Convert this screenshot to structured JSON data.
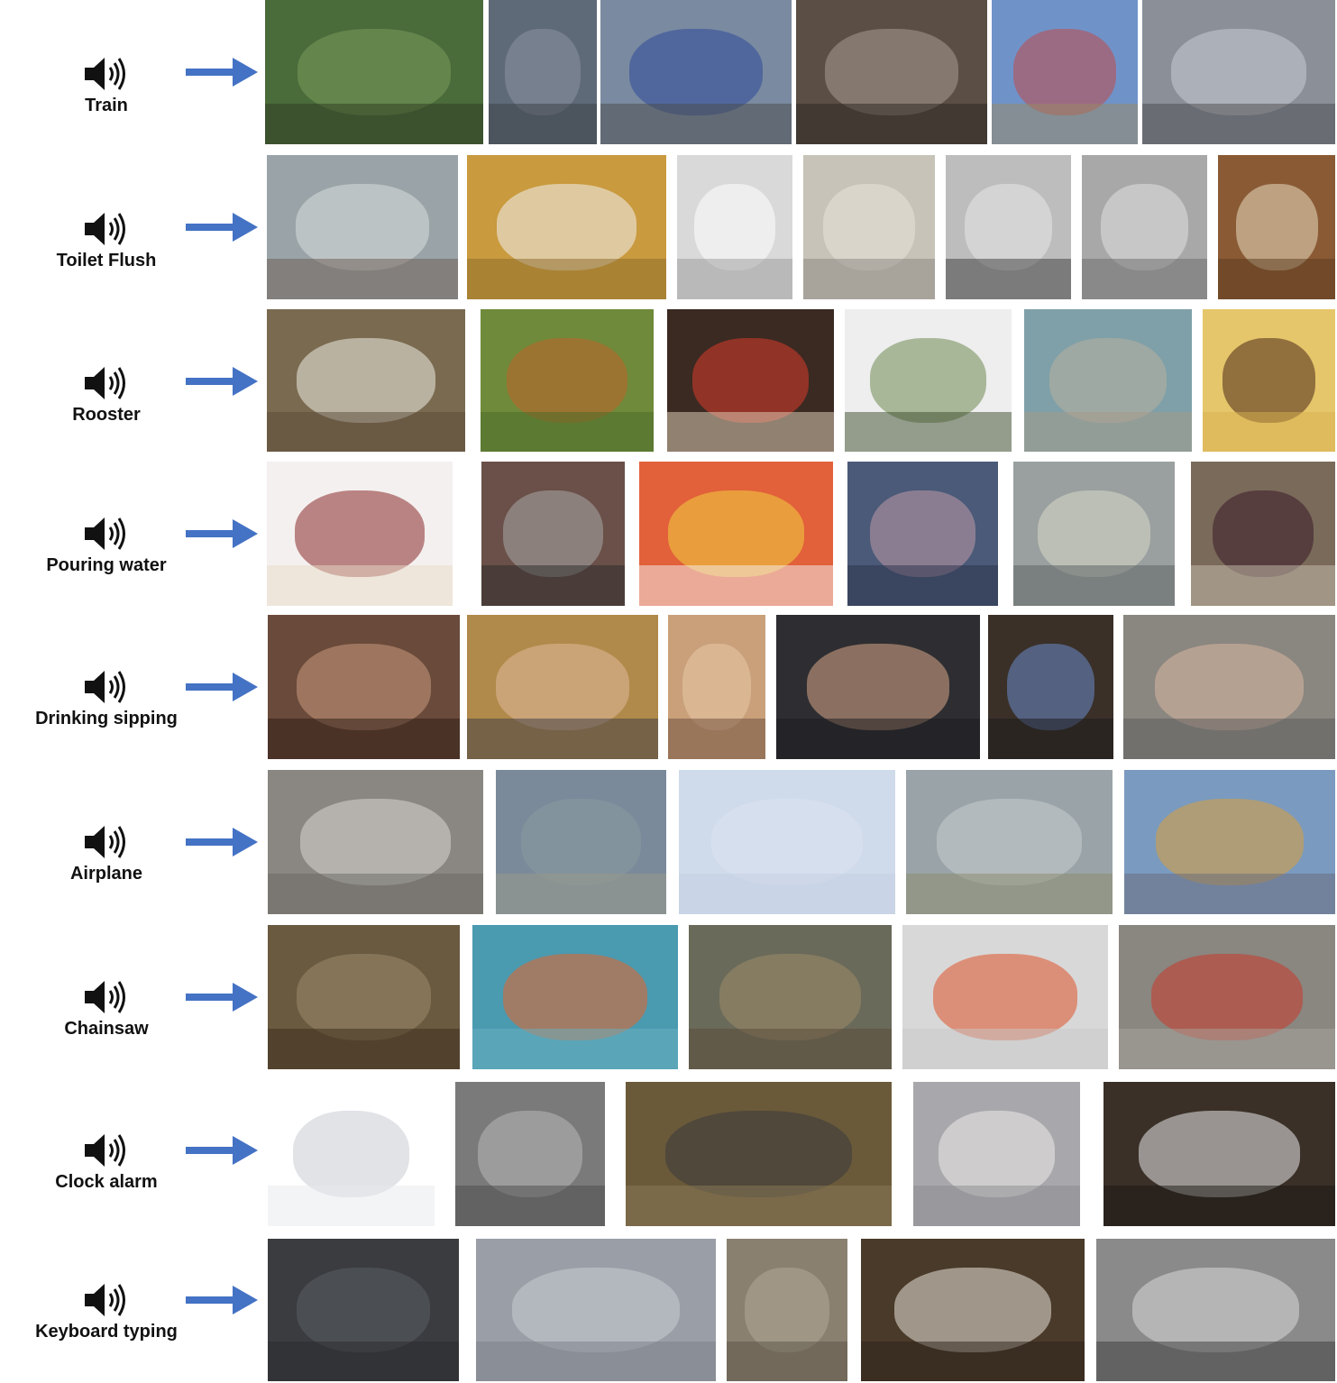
{
  "icons": {
    "speaker": "speaker-icon",
    "arrow": "arrow-right-icon"
  },
  "colors": {
    "arrow": "#4472c4",
    "speaker": "#111111",
    "label": "#111111"
  },
  "rows": [
    {
      "key": "train",
      "label": "Train",
      "image_count": 6,
      "palette": [
        "#4a6b3a",
        "#5f6a78",
        "#7a8aa0",
        "#5b4f45",
        "#6f93c9",
        "#8a8f98"
      ]
    },
    {
      "key": "toilet-flush",
      "label": "Toilet Flush",
      "image_count": 7,
      "palette": [
        "#9aa4a8",
        "#c99a3e",
        "#d9d9d9",
        "#c7c3b8",
        "#bdbdbd",
        "#a8a8a8",
        "#8a5a35"
      ]
    },
    {
      "key": "rooster",
      "label": "Rooster",
      "image_count": 6,
      "palette": [
        "#7a6a50",
        "#b5642a",
        "#8a3a2a",
        "#6f8a52",
        "#7fa0a8",
        "#e6c66a"
      ]
    },
    {
      "key": "pouring-water",
      "label": "Pouring water",
      "image_count": 6,
      "palette": [
        "#e8e0df",
        "#6a5048",
        "#e2603a",
        "#4a5a78",
        "#9aa0a0",
        "#7a6a5a"
      ]
    },
    {
      "key": "drinking-sipping",
      "label": "Drinking sipping",
      "image_count": 6,
      "palette": [
        "#6a4a3a",
        "#b08a4a",
        "#c9a07a",
        "#2e2e32",
        "#3a4a6a",
        "#8a8680"
      ]
    },
    {
      "key": "airplane",
      "label": "Airplane",
      "image_count": 5,
      "palette": [
        "#8a8782",
        "#7a8a9a",
        "#cfdaea",
        "#9aa4a8",
        "#7a9ac0"
      ]
    },
    {
      "key": "chainsaw",
      "label": "Chainsaw",
      "image_count": 5,
      "palette": [
        "#6a5a40",
        "#4a9ab0",
        "#6a6a5a",
        "#d8d8d8",
        "#8a8680"
      ]
    },
    {
      "key": "clock-alarm",
      "label": "Clock alarm",
      "image_count": 5,
      "palette": [
        "#e8eaee",
        "#7a7a7a",
        "#6a5a3a",
        "#c8c8cc",
        "#3a3028"
      ]
    },
    {
      "key": "keyboard-typing",
      "label": "Keyboard typing",
      "image_count": 5,
      "palette": [
        "#3a3c40",
        "#9a9ea6",
        "#8a8070",
        "#4a3a2a",
        "#8a8a8a"
      ]
    }
  ]
}
